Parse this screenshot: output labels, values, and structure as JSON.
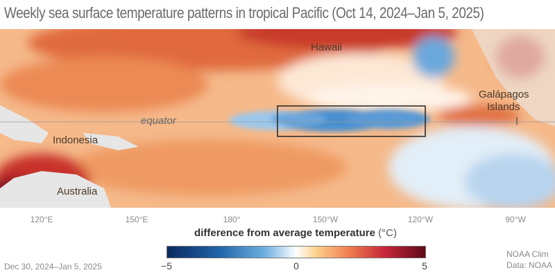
{
  "title": "Weekly sea surface temperature patterns in tropical Pacific (Oct 14, 2024–Jan 5, 2025)",
  "map_labels": {
    "hawaii": "Hawaii",
    "galapagos_line1": "Galápagos",
    "galapagos_line2": "Islands",
    "equator": "equator",
    "indonesia": "Indonesia",
    "australia": "Australia"
  },
  "longitude_ticks": [
    "120°E",
    "150°E",
    "180°",
    "150°W",
    "120°W",
    "90°W"
  ],
  "legend": {
    "title": "difference from average temperature",
    "unit": "(°C)",
    "min": "−5",
    "mid": "0",
    "max": "5",
    "colors": {
      "cold": "#0a2a5e",
      "neutral": "#ffffff",
      "warm": "#5e0a1a"
    }
  },
  "date_range": "Dec 30, 2024–Jan 5, 2025",
  "credit_line1": "NOAA Clim",
  "credit_line2": "Data: NOAA"
}
